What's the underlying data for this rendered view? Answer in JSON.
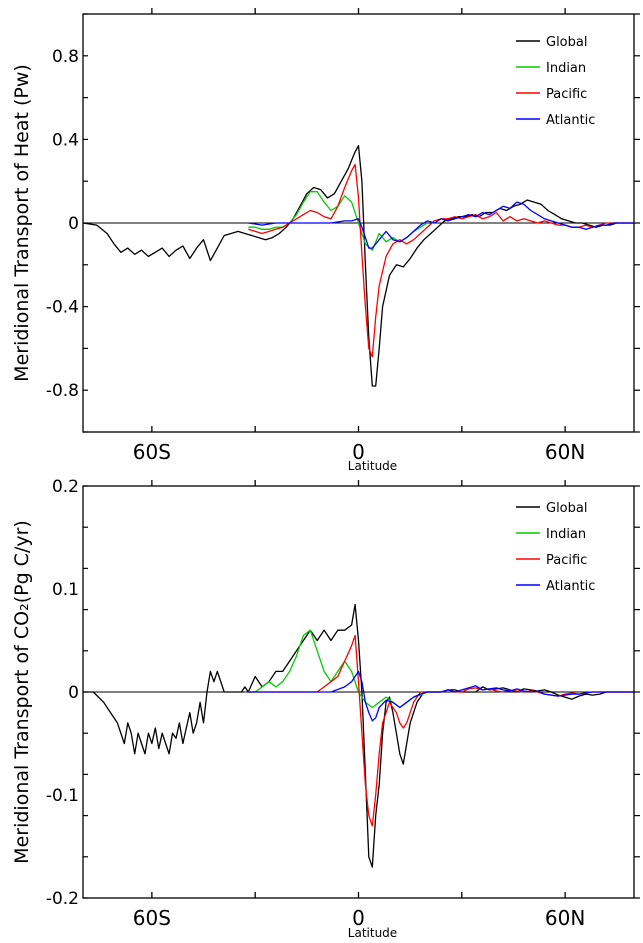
{
  "chart_data": [
    {
      "type": "line",
      "ylabel": "Meridional Transport of Heat (Pw)",
      "xlabel": "Latitude",
      "xlim": [
        -80,
        80
      ],
      "ylim": [
        -1.0,
        1.0
      ],
      "xticks": [
        {
          "value": -60,
          "label": "60S"
        },
        {
          "value": 0,
          "label": "0"
        },
        {
          "value": 60,
          "label": "60N"
        }
      ],
      "yticks": [
        {
          "value": 0.8,
          "label": "0.8"
        },
        {
          "value": 0.4,
          "label": "0.4"
        },
        {
          "value": 0,
          "label": "0"
        },
        {
          "value": -0.4,
          "label": "-0.4"
        },
        {
          "value": -0.8,
          "label": "-0.8"
        }
      ],
      "legend_position": "top-right",
      "zero_line": true,
      "series": [
        {
          "name": "Global",
          "color": "#000000",
          "x": [
            -80,
            -76,
            -73,
            -71,
            -69,
            -67,
            -65,
            -63,
            -61,
            -59,
            -57,
            -55,
            -53,
            -51,
            -49,
            -47,
            -45,
            -43,
            -41,
            -39,
            -37,
            -35,
            -33,
            -31,
            -29,
            -27,
            -25,
            -23,
            -21,
            -19,
            -17,
            -15,
            -13,
            -11,
            -9,
            -7,
            -5,
            -3,
            -2,
            -1,
            0,
            1,
            2,
            3,
            4,
            5,
            6,
            7,
            9,
            11,
            13,
            15,
            17,
            19,
            21,
            23,
            25,
            27,
            29,
            31,
            33,
            35,
            37,
            39,
            41,
            43,
            45,
            47,
            49,
            51,
            53,
            55,
            57,
            59,
            61,
            63,
            65,
            67,
            69,
            71,
            73,
            75,
            77,
            80
          ],
          "y": [
            0,
            -0.01,
            -0.05,
            -0.1,
            -0.14,
            -0.12,
            -0.15,
            -0.13,
            -0.16,
            -0.14,
            -0.12,
            -0.16,
            -0.13,
            -0.11,
            -0.17,
            -0.12,
            -0.08,
            -0.18,
            -0.12,
            -0.06,
            -0.05,
            -0.04,
            -0.05,
            -0.06,
            -0.07,
            -0.08,
            -0.07,
            -0.05,
            -0.02,
            0.02,
            0.08,
            0.14,
            0.17,
            0.16,
            0.12,
            0.14,
            0.2,
            0.26,
            0.3,
            0.34,
            0.37,
            0.2,
            -0.2,
            -0.55,
            -0.78,
            -0.78,
            -0.6,
            -0.4,
            -0.25,
            -0.2,
            -0.21,
            -0.17,
            -0.12,
            -0.08,
            -0.05,
            -0.02,
            0.01,
            0.02,
            0.03,
            0.03,
            0.04,
            0.03,
            0.05,
            0.05,
            0.07,
            0.06,
            0.08,
            0.09,
            0.11,
            0.1,
            0.09,
            0.06,
            0.04,
            0.02,
            0.01,
            0,
            0,
            -0.01,
            -0.02,
            -0.01,
            -0.01,
            0,
            0,
            0
          ]
        },
        {
          "name": "Indian",
          "color": "#00cc00",
          "x": [
            -32,
            -30,
            -28,
            -26,
            -24,
            -22,
            -20,
            -18,
            -16,
            -14,
            -12,
            -10,
            -8,
            -6,
            -4,
            -2,
            0,
            2,
            4,
            6,
            8,
            10,
            12,
            14,
            16,
            18,
            20
          ],
          "y": [
            -0.02,
            -0.02,
            -0.03,
            -0.03,
            -0.02,
            -0.02,
            0,
            0.04,
            0.1,
            0.15,
            0.15,
            0.1,
            0.06,
            0.08,
            0.13,
            0.1,
            0.0,
            -0.1,
            -0.13,
            -0.05,
            -0.09,
            -0.07,
            -0.09,
            -0.07,
            -0.04,
            -0.02,
            0
          ]
        },
        {
          "name": "Pacific",
          "color": "#ff0000",
          "x": [
            -32,
            -30,
            -28,
            -26,
            -24,
            -22,
            -20,
            -18,
            -16,
            -14,
            -12,
            -10,
            -8,
            -6,
            -4,
            -2,
            -1,
            0,
            1,
            2,
            3,
            4,
            5,
            6,
            8,
            10,
            12,
            14,
            16,
            18,
            20,
            22,
            24,
            26,
            28,
            30,
            32,
            34,
            36,
            38,
            40,
            42,
            44,
            46,
            48,
            50,
            52,
            54,
            56,
            58,
            60,
            62,
            64,
            66,
            68,
            70,
            72,
            74,
            76,
            78,
            80
          ],
          "y": [
            -0.03,
            -0.04,
            -0.05,
            -0.04,
            -0.03,
            -0.02,
            0,
            0.02,
            0.04,
            0.06,
            0.05,
            0.03,
            0.02,
            0.08,
            0.17,
            0.25,
            0.28,
            0.12,
            -0.15,
            -0.4,
            -0.6,
            -0.64,
            -0.45,
            -0.3,
            -0.16,
            -0.1,
            -0.08,
            -0.1,
            -0.08,
            -0.05,
            -0.02,
            0.01,
            0.02,
            0.02,
            0.03,
            0.02,
            0.03,
            0.04,
            0.02,
            0.03,
            0.05,
            0.01,
            0.03,
            0.01,
            0.02,
            0.01,
            0.0,
            0.01,
            0,
            -0.01,
            -0.01,
            -0.02,
            -0.02,
            -0.01,
            -0.02,
            -0.01,
            0,
            0,
            0,
            0,
            0
          ]
        },
        {
          "name": "Atlantic",
          "color": "#0000ff",
          "x": [
            -32,
            -28,
            -24,
            -20,
            -16,
            -12,
            -8,
            -4,
            -2,
            0,
            1,
            2,
            3,
            4,
            6,
            8,
            10,
            12,
            14,
            16,
            18,
            20,
            22,
            24,
            26,
            28,
            30,
            32,
            34,
            36,
            38,
            40,
            42,
            44,
            46,
            48,
            50,
            52,
            54,
            56,
            58,
            60,
            62,
            64,
            66,
            68,
            70,
            72,
            74,
            76,
            78,
            80
          ],
          "y": [
            0,
            -0.01,
            0,
            0,
            0,
            0,
            0,
            0.01,
            0.01,
            0.02,
            -0.02,
            -0.07,
            -0.12,
            -0.12,
            -0.08,
            -0.04,
            -0.08,
            -0.09,
            -0.07,
            -0.04,
            -0.01,
            0.01,
            0.0,
            0.02,
            0.01,
            0.02,
            0.03,
            0.04,
            0.03,
            0.05,
            0.04,
            0.06,
            0.08,
            0.07,
            0.1,
            0.09,
            0.06,
            0.04,
            0.02,
            0.01,
            0,
            -0.01,
            -0.02,
            -0.02,
            -0.03,
            -0.02,
            -0.01,
            -0.01,
            0,
            0,
            0,
            0
          ]
        }
      ]
    },
    {
      "type": "line",
      "ylabel": "Meridional Transport of CO₂(Pg C/yr)",
      "xlabel": "Latitude",
      "xlim": [
        -80,
        80
      ],
      "ylim": [
        -0.2,
        0.2
      ],
      "xticks": [
        {
          "value": -60,
          "label": "60S"
        },
        {
          "value": 0,
          "label": "0"
        },
        {
          "value": 60,
          "label": "60N"
        }
      ],
      "yticks": [
        {
          "value": 0.2,
          "label": "0.2"
        },
        {
          "value": 0.1,
          "label": "0.1"
        },
        {
          "value": 0,
          "label": "0"
        },
        {
          "value": -0.1,
          "label": "-0.1"
        },
        {
          "value": -0.2,
          "label": "-0.2"
        }
      ],
      "legend_position": "top-right",
      "zero_line": true,
      "series": [
        {
          "name": "Global",
          "color": "#000000",
          "x": [
            -80,
            -77,
            -74,
            -72,
            -70,
            -68,
            -67,
            -66,
            -65,
            -64,
            -63,
            -62,
            -61,
            -60,
            -59,
            -58,
            -57,
            -56,
            -55,
            -54,
            -53,
            -52,
            -51,
            -50,
            -49,
            -48,
            -47,
            -46,
            -45,
            -44,
            -43,
            -42,
            -41,
            -40,
            -39,
            -38,
            -37,
            -36,
            -35,
            -34,
            -33,
            -32,
            -30,
            -28,
            -26,
            -24,
            -22,
            -20,
            -18,
            -16,
            -14,
            -12,
            -10,
            -8,
            -6,
            -4,
            -2,
            -1,
            0,
            1,
            2,
            3,
            4,
            5,
            6,
            7,
            8,
            9,
            10,
            11,
            12,
            13,
            14,
            15,
            16,
            17,
            18,
            19,
            20,
            22,
            24,
            26,
            28,
            30,
            32,
            34,
            36,
            38,
            40,
            42,
            44,
            46,
            48,
            50,
            52,
            54,
            56,
            58,
            60,
            62,
            64,
            66,
            68,
            70,
            72,
            74,
            76,
            78,
            80
          ],
          "y": [
            0,
            0,
            -0.01,
            -0.02,
            -0.03,
            -0.05,
            -0.03,
            -0.04,
            -0.06,
            -0.04,
            -0.05,
            -0.06,
            -0.04,
            -0.05,
            -0.035,
            -0.055,
            -0.04,
            -0.05,
            -0.06,
            -0.04,
            -0.045,
            -0.03,
            -0.05,
            -0.035,
            -0.02,
            -0.04,
            -0.03,
            -0.01,
            -0.03,
            0.0,
            0.02,
            0.01,
            0.02,
            0.01,
            0.0,
            0.0,
            0.0,
            0.0,
            0.0,
            0.0,
            0.005,
            0.0,
            0.015,
            0.005,
            0.01,
            0.02,
            0.02,
            0.03,
            0.04,
            0.05,
            0.06,
            0.05,
            0.06,
            0.05,
            0.06,
            0.06,
            0.065,
            0.085,
            0.05,
            0.0,
            -0.08,
            -0.16,
            -0.17,
            -0.12,
            -0.09,
            -0.04,
            -0.01,
            -0.005,
            -0.02,
            -0.04,
            -0.06,
            -0.07,
            -0.05,
            -0.03,
            -0.02,
            -0.01,
            -0.005,
            0,
            0,
            0,
            0,
            0.002,
            0.002,
            0,
            0,
            0,
            0.005,
            0.002,
            0.003,
            0.004,
            0.002,
            0,
            0.003,
            0.002,
            0.001,
            0.002,
            0,
            -0.003,
            -0.005,
            -0.007,
            -0.004,
            -0.002,
            -0.003,
            -0.002,
            0,
            0,
            0,
            0,
            0
          ]
        },
        {
          "name": "Indian",
          "color": "#00cc00",
          "x": [
            -32,
            -30,
            -28,
            -26,
            -24,
            -22,
            -20,
            -18,
            -16,
            -14,
            -12,
            -10,
            -8,
            -6,
            -4,
            -2,
            0,
            2,
            4,
            6,
            8,
            10,
            12,
            14,
            16,
            18,
            20,
            22,
            24
          ],
          "y": [
            0,
            0,
            0.005,
            0.01,
            0.005,
            0.01,
            0.02,
            0.035,
            0.055,
            0.06,
            0.04,
            0.02,
            0.01,
            0.02,
            0.03,
            0.02,
            0.0,
            -0.01,
            -0.015,
            -0.01,
            -0.005,
            -0.01,
            -0.015,
            -0.01,
            -0.005,
            -0.003,
            0,
            0,
            0
          ]
        },
        {
          "name": "Pacific",
          "color": "#ff0000",
          "x": [
            -32,
            -28,
            -24,
            -20,
            -16,
            -12,
            -10,
            -8,
            -6,
            -4,
            -2,
            -1,
            0,
            1,
            2,
            3,
            4,
            5,
            6,
            7,
            8,
            9,
            10,
            11,
            12,
            13,
            14,
            15,
            16,
            17,
            18,
            20,
            22,
            24,
            26,
            28,
            30,
            32,
            34,
            36,
            38,
            40,
            42,
            44,
            46,
            48,
            50,
            52,
            54,
            56,
            58,
            60,
            62,
            64,
            66,
            68,
            70,
            72,
            74,
            76,
            78,
            80
          ],
          "y": [
            0,
            0,
            0,
            0,
            0,
            0,
            0.005,
            0.01,
            0.015,
            0.03,
            0.045,
            0.055,
            0.01,
            -0.04,
            -0.09,
            -0.12,
            -0.13,
            -0.1,
            -0.06,
            -0.03,
            -0.02,
            -0.01,
            -0.015,
            -0.02,
            -0.03,
            -0.035,
            -0.03,
            -0.02,
            -0.01,
            -0.005,
            0,
            0,
            0,
            0,
            0.002,
            0,
            0,
            0.003,
            0.004,
            0.002,
            0.003,
            0.001,
            0,
            0.002,
            0.001,
            0,
            0.001,
            0,
            -0.002,
            -0.003,
            -0.004,
            -0.002,
            -0.001,
            -0.002,
            -0.001,
            0,
            0,
            0,
            0,
            0,
            0,
            0
          ]
        },
        {
          "name": "Atlantic",
          "color": "#0000ff",
          "x": [
            -32,
            -28,
            -24,
            -20,
            -16,
            -12,
            -8,
            -4,
            -2,
            -1,
            0,
            1,
            2,
            3,
            4,
            5,
            6,
            8,
            10,
            12,
            14,
            16,
            18,
            20,
            22,
            24,
            26,
            28,
            30,
            32,
            34,
            36,
            38,
            40,
            42,
            44,
            46,
            48,
            50,
            52,
            54,
            56,
            58,
            60,
            62,
            64,
            66,
            68,
            70,
            72,
            74,
            76,
            78,
            80
          ],
          "y": [
            0,
            0,
            0,
            0,
            0,
            0,
            0,
            0.005,
            0.01,
            0.015,
            0.02,
            0.01,
            -0.01,
            -0.02,
            -0.028,
            -0.025,
            -0.015,
            -0.008,
            -0.01,
            -0.015,
            -0.01,
            -0.005,
            -0.002,
            0,
            0,
            0,
            0.002,
            0,
            0.002,
            0.004,
            0.006,
            0.002,
            0.003,
            0.004,
            0.002,
            0.001,
            0.003,
            0.001,
            0,
            0.001,
            -0.002,
            -0.003,
            -0.004,
            -0.003,
            -0.002,
            -0.002,
            -0.001,
            0,
            0,
            0,
            0,
            0,
            0,
            0
          ]
        }
      ]
    }
  ]
}
